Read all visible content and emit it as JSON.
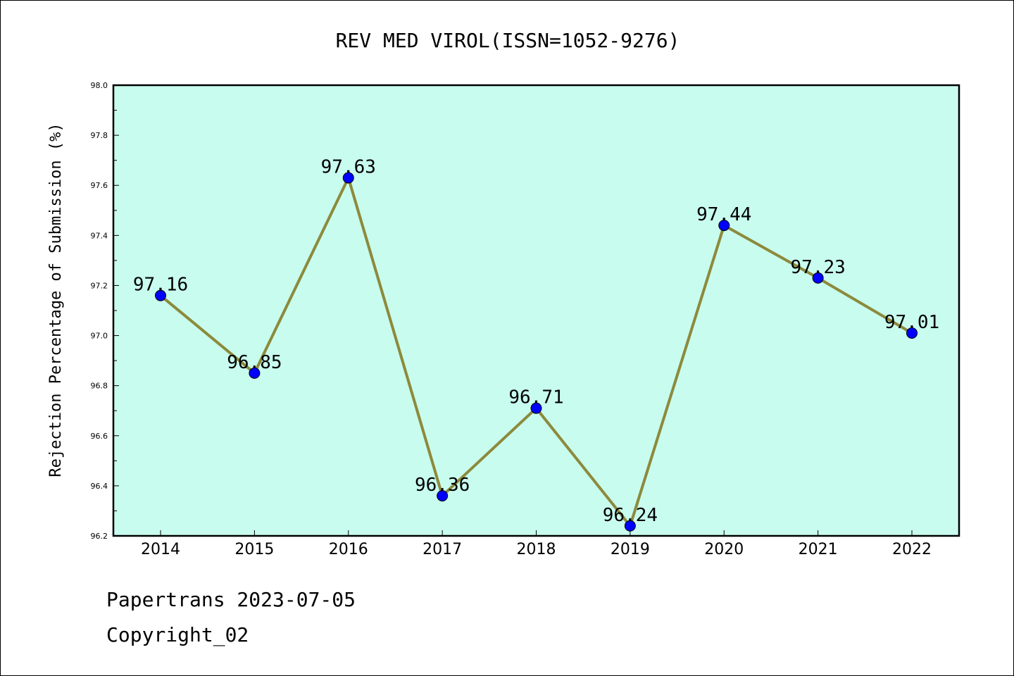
{
  "chart_data": {
    "type": "line",
    "title": "REV MED VIROL(ISSN=1052-9276)",
    "ylabel": "Rejection Percentage of Submission (%)",
    "xlabel": "",
    "categories": [
      "2014",
      "2015",
      "2016",
      "2017",
      "2018",
      "2019",
      "2020",
      "2021",
      "2022"
    ],
    "series": [
      {
        "values": [
          97.16,
          96.85,
          97.63,
          96.36,
          96.71,
          96.24,
          97.44,
          97.23,
          97.01
        ],
        "labels": [
          "97.16",
          "96.85",
          "97.63",
          "96.36",
          "96.71",
          "96.24",
          "97.44",
          "97.23",
          "97.01"
        ]
      }
    ],
    "ylim": [
      96.2,
      98.0
    ],
    "yticks": [
      "96.2",
      "96.4",
      "96.6",
      "96.8",
      "97.0",
      "97.2",
      "97.4",
      "97.6",
      "97.8",
      "98.0"
    ],
    "grid": false,
    "colors": {
      "plot_background": "#c8fcee",
      "line": "#8c8a3c",
      "marker": "#0000ff"
    }
  },
  "footer": {
    "line1": "Papertrans 2023-07-05",
    "line2": "Copyright_02"
  }
}
